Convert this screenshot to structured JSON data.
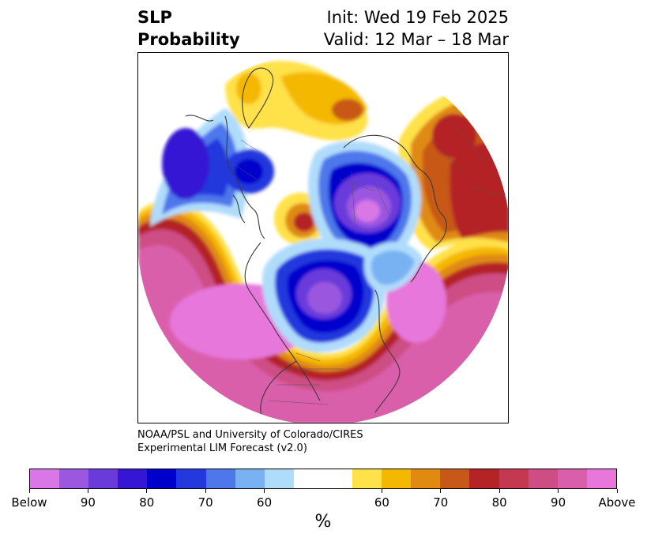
{
  "header": {
    "title_line1": "SLP",
    "title_line2": "Probability",
    "init_text": "Init: Wed 19 Feb 2025",
    "valid_text": "Valid: 12 Mar – 18 Mar"
  },
  "credit": {
    "line1": "NOAA/PSL and University of Colorado/CIRES",
    "line2": "Experimental LIM Forecast (v2.0)"
  },
  "colorbar": {
    "unit_label": "%",
    "colors": [
      "#d977e6",
      "#9b57e0",
      "#6a3adb",
      "#3416d4",
      "#0000cc",
      "#2338dd",
      "#4d77ea",
      "#78b2f3",
      "#b0dcfb",
      "#ffffff",
      "#ffffff",
      "#ffe14a",
      "#f5b800",
      "#e08a12",
      "#c75818",
      "#b42325",
      "#c4394f",
      "#cd4d84",
      "#da5fab",
      "#e777db"
    ],
    "tick_labels": [
      "Below",
      "90",
      "80",
      "70",
      "60",
      "60",
      "70",
      "80",
      "90",
      "Above"
    ]
  },
  "palette": {
    "coast": "#3a3a3a",
    "frame": "#000000"
  }
}
